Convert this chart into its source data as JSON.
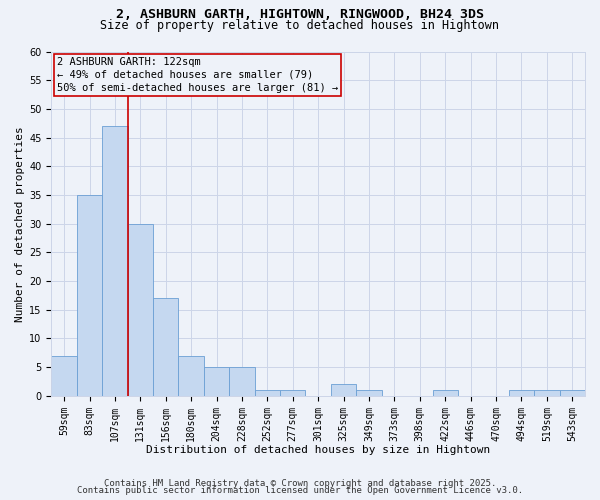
{
  "title_line1": "2, ASHBURN GARTH, HIGHTOWN, RINGWOOD, BH24 3DS",
  "title_line2": "Size of property relative to detached houses in Hightown",
  "xlabel": "Distribution of detached houses by size in Hightown",
  "ylabel": "Number of detached properties",
  "categories": [
    "59sqm",
    "83sqm",
    "107sqm",
    "131sqm",
    "156sqm",
    "180sqm",
    "204sqm",
    "228sqm",
    "252sqm",
    "277sqm",
    "301sqm",
    "325sqm",
    "349sqm",
    "373sqm",
    "398sqm",
    "422sqm",
    "446sqm",
    "470sqm",
    "494sqm",
    "519sqm",
    "543sqm"
  ],
  "values": [
    7,
    35,
    47,
    30,
    17,
    7,
    5,
    5,
    1,
    1,
    0,
    2,
    1,
    0,
    0,
    1,
    0,
    0,
    1,
    1,
    1
  ],
  "bar_color": "#c5d8f0",
  "bar_edge_color": "#6b9fd4",
  "grid_color": "#ccd5e8",
  "background_color": "#eef2f9",
  "vline_x_index": 2.5,
  "vline_color": "#cc0000",
  "annotation_text": "2 ASHBURN GARTH: 122sqm\n← 49% of detached houses are smaller (79)\n50% of semi-detached houses are larger (81) →",
  "annotation_box_color": "#cc0000",
  "ylim": [
    0,
    60
  ],
  "yticks": [
    0,
    5,
    10,
    15,
    20,
    25,
    30,
    35,
    40,
    45,
    50,
    55,
    60
  ],
  "footer_line1": "Contains HM Land Registry data © Crown copyright and database right 2025.",
  "footer_line2": "Contains public sector information licensed under the Open Government Licence v3.0.",
  "title_fontsize": 9.5,
  "subtitle_fontsize": 8.5,
  "axis_label_fontsize": 8,
  "tick_fontsize": 7,
  "annotation_fontsize": 7.5,
  "footer_fontsize": 6.5
}
